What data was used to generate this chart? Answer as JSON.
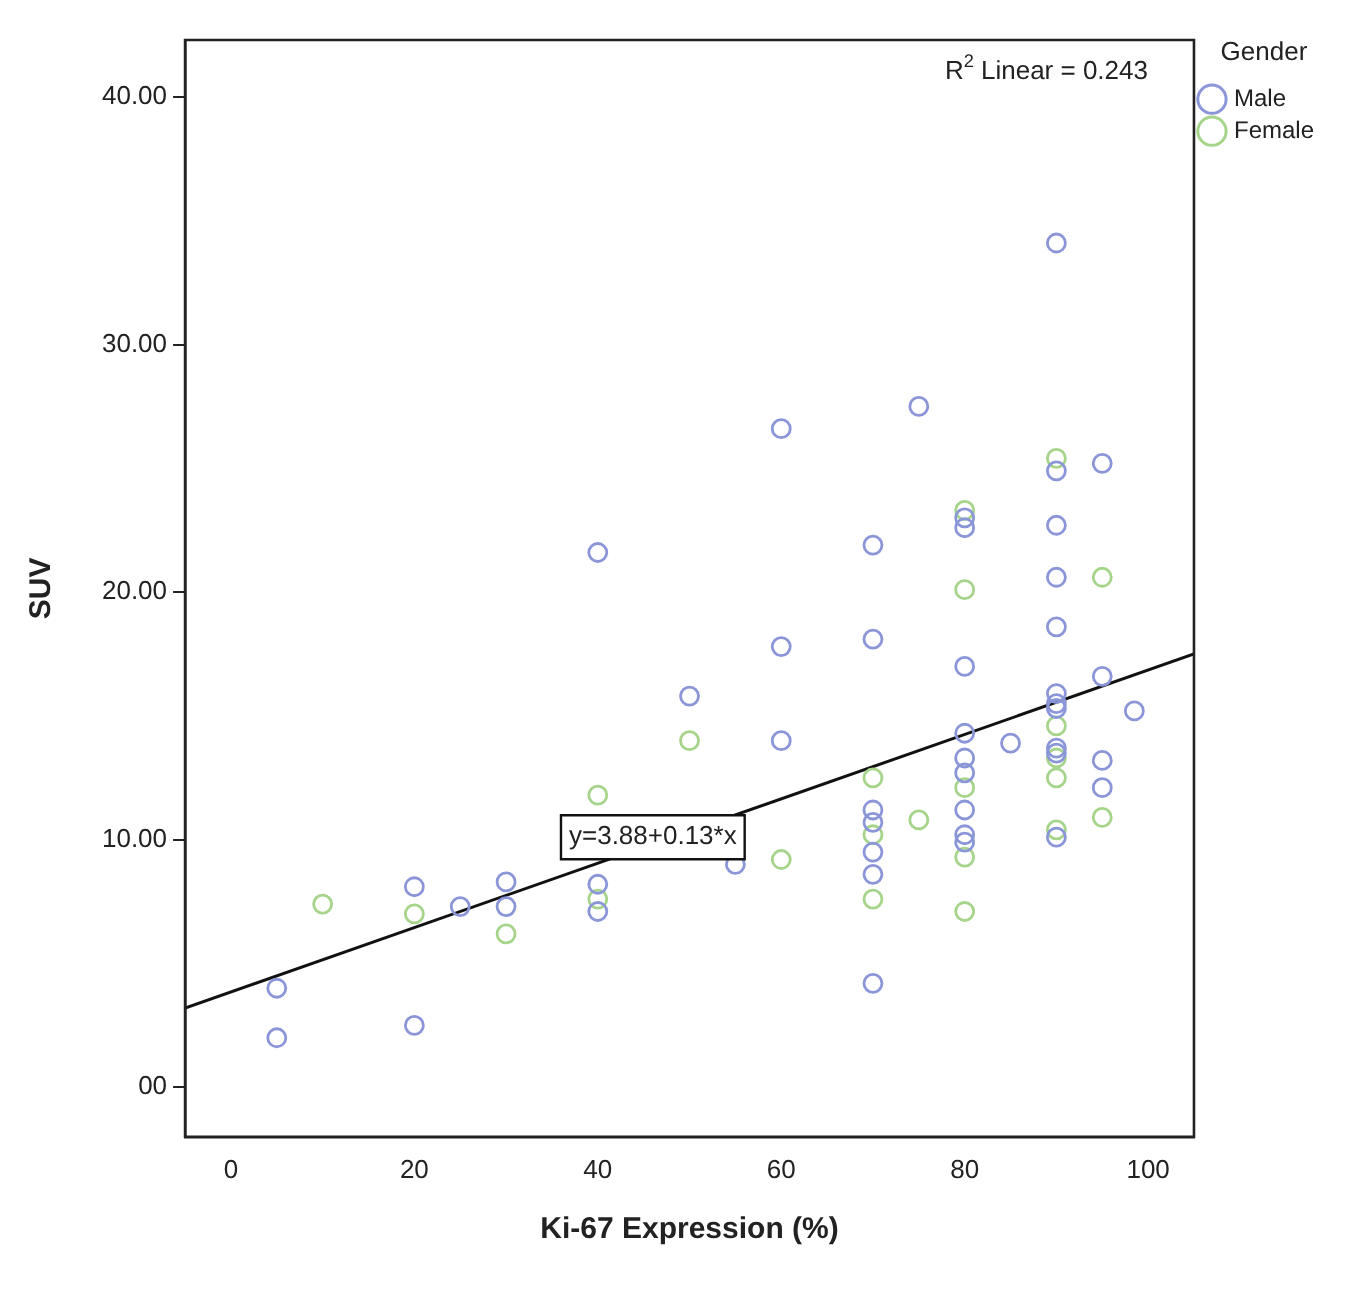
{
  "chart_data": {
    "type": "scatter",
    "xlabel": "Ki-67 Expression (%)",
    "ylabel": "SUV",
    "legend_title": "Gender",
    "legend": "top right",
    "marker": "circle",
    "grid": false,
    "xlim": [
      -5,
      105
    ],
    "xticks": [
      0,
      20,
      40,
      60,
      80,
      100
    ],
    "ylim": [
      -2,
      42.3
    ],
    "yticks": [
      {
        "value": 0,
        "label": "00"
      },
      {
        "value": 10,
        "label": "10.00"
      },
      {
        "value": 20,
        "label": "20.00"
      },
      {
        "value": 30,
        "label": "30.00"
      },
      {
        "value": 40,
        "label": "40.00"
      }
    ],
    "annotations": [
      "R$^{2}$ Linear = 0.243",
      {
        "text": "y=3.88+0.13*x",
        "x": 46,
        "y": 10.1
      }
    ],
    "series": [
      {
        "name": "Male",
        "color": "#8a96d8",
        "x": [
          90,
          75,
          60,
          40,
          60,
          50,
          60,
          90,
          95,
          80,
          80,
          90,
          70,
          90,
          70,
          90,
          80,
          95,
          90,
          90,
          90,
          98.5,
          80,
          85,
          90,
          90,
          95,
          80,
          80,
          95,
          70,
          70,
          80,
          70,
          70,
          70,
          80,
          80,
          90,
          55,
          20,
          25,
          30,
          30,
          40,
          40,
          5,
          5,
          20
        ],
        "values": [
          34.1,
          27.5,
          26.6,
          21.6,
          17.8,
          15.8,
          14.0,
          24.9,
          25.2,
          23.0,
          22.6,
          22.7,
          21.9,
          20.6,
          18.1,
          18.6,
          17.0,
          16.6,
          15.9,
          15.5,
          15.3,
          15.2,
          14.3,
          13.9,
          13.7,
          13.5,
          13.2,
          13.3,
          12.7,
          12.1,
          11.2,
          10.7,
          11.2,
          9.5,
          8.6,
          4.2,
          10.2,
          9.9,
          10.1,
          9.0,
          8.1,
          7.3,
          8.3,
          7.3,
          8.2,
          7.1,
          4.0,
          2.0,
          2.5
        ]
      },
      {
        "name": "Female",
        "color": "#a6d48a",
        "x": [
          50,
          40,
          90,
          80,
          80,
          95,
          90,
          90,
          80,
          90,
          70,
          75,
          95,
          70,
          80,
          80,
          90,
          70,
          60,
          10,
          20,
          30,
          40
        ],
        "values": [
          14.0,
          11.8,
          25.4,
          23.3,
          20.1,
          20.6,
          14.6,
          13.3,
          12.1,
          12.5,
          12.5,
          10.8,
          10.9,
          10.2,
          9.3,
          7.1,
          10.4,
          7.6,
          9.2,
          7.4,
          7.0,
          6.2,
          7.6
        ]
      },
      {
        "type": "line",
        "color": "#111111",
        "marker": "none",
        "x": [
          -5,
          105
        ],
        "values": [
          3.2,
          17.5
        ]
      }
    ]
  }
}
